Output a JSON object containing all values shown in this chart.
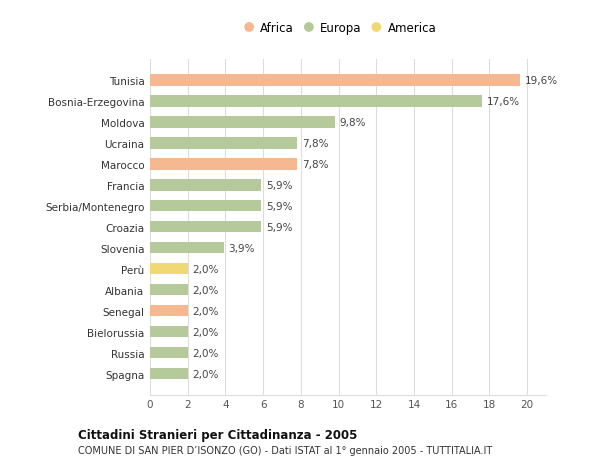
{
  "categories": [
    "Tunisia",
    "Bosnia-Erzegovina",
    "Moldova",
    "Ucraina",
    "Marocco",
    "Francia",
    "Serbia/Montenegro",
    "Croazia",
    "Slovenia",
    "Perù",
    "Albania",
    "Senegal",
    "Bielorussia",
    "Russia",
    "Spagna"
  ],
  "values": [
    19.6,
    17.6,
    9.8,
    7.8,
    7.8,
    5.9,
    5.9,
    5.9,
    3.9,
    2.0,
    2.0,
    2.0,
    2.0,
    2.0,
    2.0
  ],
  "labels": [
    "19,6%",
    "17,6%",
    "9,8%",
    "7,8%",
    "7,8%",
    "5,9%",
    "5,9%",
    "5,9%",
    "3,9%",
    "2,0%",
    "2,0%",
    "2,0%",
    "2,0%",
    "2,0%",
    "2,0%"
  ],
  "continent": [
    "Africa",
    "Europa",
    "Europa",
    "Europa",
    "Africa",
    "Europa",
    "Europa",
    "Europa",
    "Europa",
    "America",
    "Europa",
    "Africa",
    "Europa",
    "Europa",
    "Europa"
  ],
  "colors": {
    "Africa": "#f5b891",
    "Europa": "#b5c99a",
    "America": "#f0d875"
  },
  "legend_labels": [
    "Africa",
    "Europa",
    "America"
  ],
  "legend_colors": [
    "#f5b891",
    "#b5c99a",
    "#f0d875"
  ],
  "title": "Cittadini Stranieri per Cittadinanza - 2005",
  "subtitle": "COMUNE DI SAN PIER D’ISONZO (GO) - Dati ISTAT al 1° gennaio 2005 - TUTTITALIA.IT",
  "xlim": [
    0,
    21
  ],
  "xticks": [
    0,
    2,
    4,
    6,
    8,
    10,
    12,
    14,
    16,
    18,
    20
  ],
  "background_color": "#ffffff",
  "grid_color": "#dddddd"
}
